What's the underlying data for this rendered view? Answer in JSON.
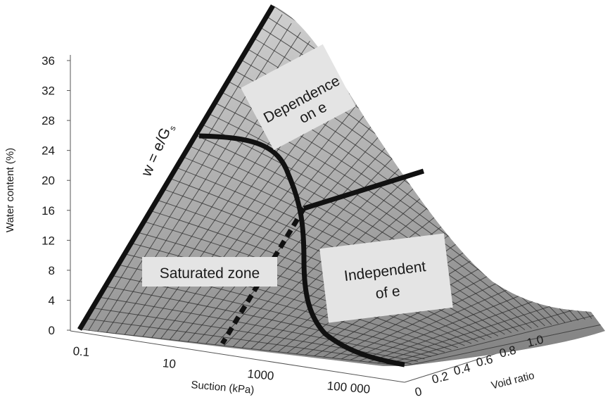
{
  "chart_data": {
    "type": "surface",
    "title": "",
    "xlabel": "Suction (kPa)",
    "ylabel": "Void ratio",
    "zlabel": "Water content (%)",
    "x_scale": "log",
    "x_ticks": [
      "0.1",
      "10",
      "1000",
      "100 000"
    ],
    "y_ticks": [
      "0",
      "0.2",
      "0.4",
      "0.6",
      "0.8",
      "1.0"
    ],
    "z_ticks": [
      "0",
      "4",
      "8",
      "12",
      "16",
      "20",
      "24",
      "28",
      "32",
      "36"
    ],
    "zlim": [
      0,
      36
    ],
    "annotations": {
      "formula_main": "w = e/G",
      "formula_sub": "s",
      "dependence_line1": "Dependence",
      "dependence_line2": "on e",
      "saturated": "Saturated zone",
      "independent_line1": "Independent",
      "independent_line2": "of e"
    },
    "colors": {
      "surface_light": "#f2f2f2",
      "surface_dark": "#6e6e6e",
      "mesh": "#2a2a2a",
      "boundary": "#111111",
      "label_box": "#e4e4e4"
    }
  }
}
